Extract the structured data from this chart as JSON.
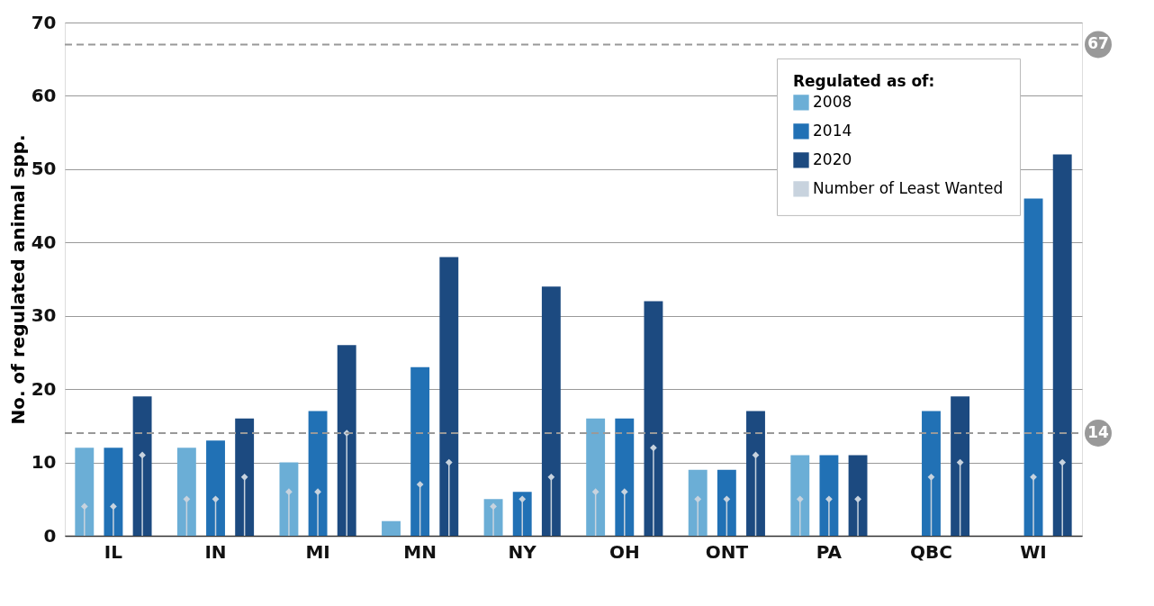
{
  "chart_data": {
    "type": "bar",
    "ylabel": "No. of regulated animal spp.",
    "legend_title": "Regulated as of:",
    "categories": [
      "IL",
      "IN",
      "MI",
      "MN",
      "NY",
      "OH",
      "ONT",
      "PA",
      "QBC",
      "WI"
    ],
    "series": [
      {
        "name": "2008",
        "type": "bar",
        "color": "#6baed6",
        "values": [
          12,
          12,
          10,
          2,
          5,
          16,
          9,
          11,
          null,
          null
        ]
      },
      {
        "name": "2014",
        "type": "bar",
        "color": "#2171b5",
        "values": [
          12,
          13,
          17,
          23,
          6,
          16,
          9,
          11,
          17,
          46
        ]
      },
      {
        "name": "2020",
        "type": "bar",
        "color": "#1c4a80",
        "values": [
          19,
          16,
          26,
          38,
          34,
          32,
          17,
          11,
          19,
          52
        ]
      },
      {
        "name": "Number of Least Wanted",
        "type": "lollipop",
        "color": "#c8d3de",
        "values": [
          4,
          5,
          6,
          null,
          4,
          6,
          5,
          5,
          null,
          null
        ]
      },
      {
        "type": "lollipop",
        "color": "#c8d3de",
        "values": [
          4,
          5,
          6,
          7,
          5,
          6,
          5,
          5,
          8,
          8
        ]
      },
      {
        "type": "lollipop",
        "color": "#c8d3de",
        "values": [
          11,
          8,
          14,
          10,
          8,
          12,
          11,
          5,
          10,
          10
        ]
      }
    ],
    "marker": "diamond",
    "ylim": [
      0,
      70
    ],
    "yticks": [
      0,
      10,
      20,
      30,
      40,
      50,
      60,
      70
    ],
    "ref_lines": [
      {
        "axis": "y",
        "value": 67,
        "label": "67",
        "color": "#999999",
        "line_style": "dashed"
      },
      {
        "axis": "y",
        "value": 14,
        "label": "14",
        "color": "#999999",
        "line_style": "dashed"
      }
    ],
    "grid": "y",
    "legend": "top right"
  }
}
